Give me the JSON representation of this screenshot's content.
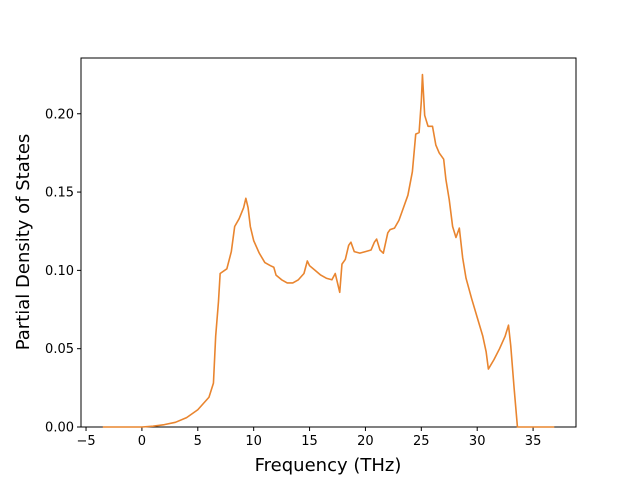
{
  "chart_data": {
    "type": "line",
    "xlabel": "Frequency (THz)",
    "ylabel": "Partial Density of States",
    "xlim": [
      -5.45,
      38.84
    ],
    "ylim": [
      0,
      0.2356
    ],
    "xticks": [
      {
        "value": -5,
        "label": "−5"
      },
      0,
      5,
      10,
      15,
      20,
      25,
      30,
      35
    ],
    "yticks": [
      {
        "value": 0,
        "label": "0.00"
      },
      {
        "value": 0.05,
        "label": "0.05"
      },
      {
        "value": 0.1,
        "label": "0.10"
      },
      {
        "value": 0.15,
        "label": "0.15"
      },
      {
        "value": 0.2,
        "label": "0.20"
      }
    ],
    "x": [
      -3.5,
      0,
      1,
      2,
      3,
      4,
      5,
      6,
      6.4,
      6.6,
      6.85,
      7.0,
      7.6,
      8,
      8.3,
      8.7,
      9.1,
      9.3,
      9.5,
      9.7,
      10,
      10.5,
      11,
      11.5,
      11.8,
      12,
      12.5,
      13,
      13.5,
      14,
      14.5,
      14.8,
      15,
      15.5,
      16,
      16.5,
      17,
      17.3,
      17.5,
      17.7,
      17.9,
      18.2,
      18.5,
      18.7,
      19,
      19.5,
      20,
      20.5,
      20.8,
      21,
      21.3,
      21.6,
      22,
      22.2,
      22.6,
      23,
      23.4,
      23.8,
      24.2,
      24.5,
      24.8,
      25,
      25.1,
      25.3,
      25.6,
      26,
      26.3,
      26.6,
      27,
      27.2,
      27.5,
      27.8,
      28.1,
      28.4,
      28.7,
      29,
      29.5,
      30,
      30.5,
      30.8,
      31,
      31.5,
      32,
      32.5,
      32.8,
      33.0,
      33.3,
      33.6,
      36.9
    ],
    "series": [
      {
        "color": "#e9852f",
        "values": [
          0,
          0,
          0.0005,
          0.0015,
          0.003,
          0.006,
          0.011,
          0.019,
          0.028,
          0.058,
          0.08,
          0.098,
          0.101,
          0.112,
          0.128,
          0.133,
          0.14,
          0.146,
          0.14,
          0.128,
          0.119,
          0.111,
          0.105,
          0.103,
          0.102,
          0.097,
          0.094,
          0.092,
          0.092,
          0.094,
          0.098,
          0.106,
          0.103,
          0.1,
          0.097,
          0.095,
          0.094,
          0.098,
          0.092,
          0.086,
          0.104,
          0.107,
          0.116,
          0.118,
          0.112,
          0.111,
          0.112,
          0.113,
          0.118,
          0.12,
          0.113,
          0.111,
          0.124,
          0.126,
          0.127,
          0.132,
          0.14,
          0.148,
          0.163,
          0.187,
          0.188,
          0.208,
          0.225,
          0.199,
          0.192,
          0.192,
          0.18,
          0.175,
          0.171,
          0.158,
          0.145,
          0.128,
          0.121,
          0.127,
          0.108,
          0.095,
          0.082,
          0.07,
          0.058,
          0.048,
          0.037,
          0.043,
          0.05,
          0.058,
          0.065,
          0.052,
          0.025,
          0,
          0
        ]
      }
    ]
  }
}
